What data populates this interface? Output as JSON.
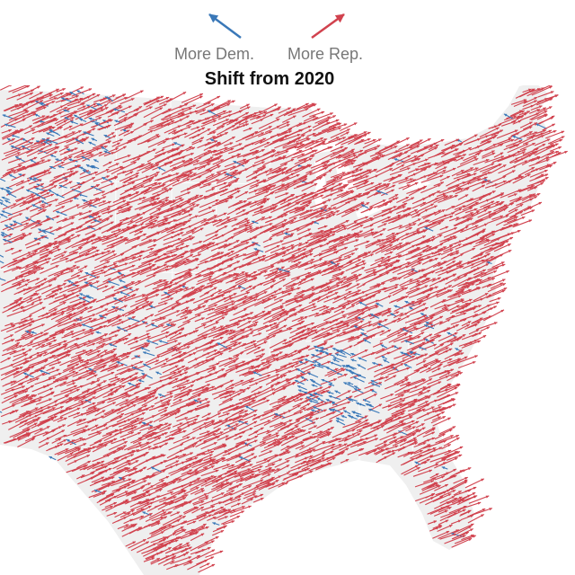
{
  "legend": {
    "dem_label": "More Dem.",
    "rep_label": "More Rep.",
    "title": "Shift from 2020"
  },
  "colors": {
    "dem": "#3a78b8",
    "rep": "#d1424e",
    "land": "#efefef",
    "water": "#ffffff",
    "borders": "#ffffff",
    "title": "#111111",
    "legend_text": "#777777"
  },
  "map": {
    "subject": "county-level vote shift arrows, contiguous United States",
    "predominant_shift": "rep"
  }
}
